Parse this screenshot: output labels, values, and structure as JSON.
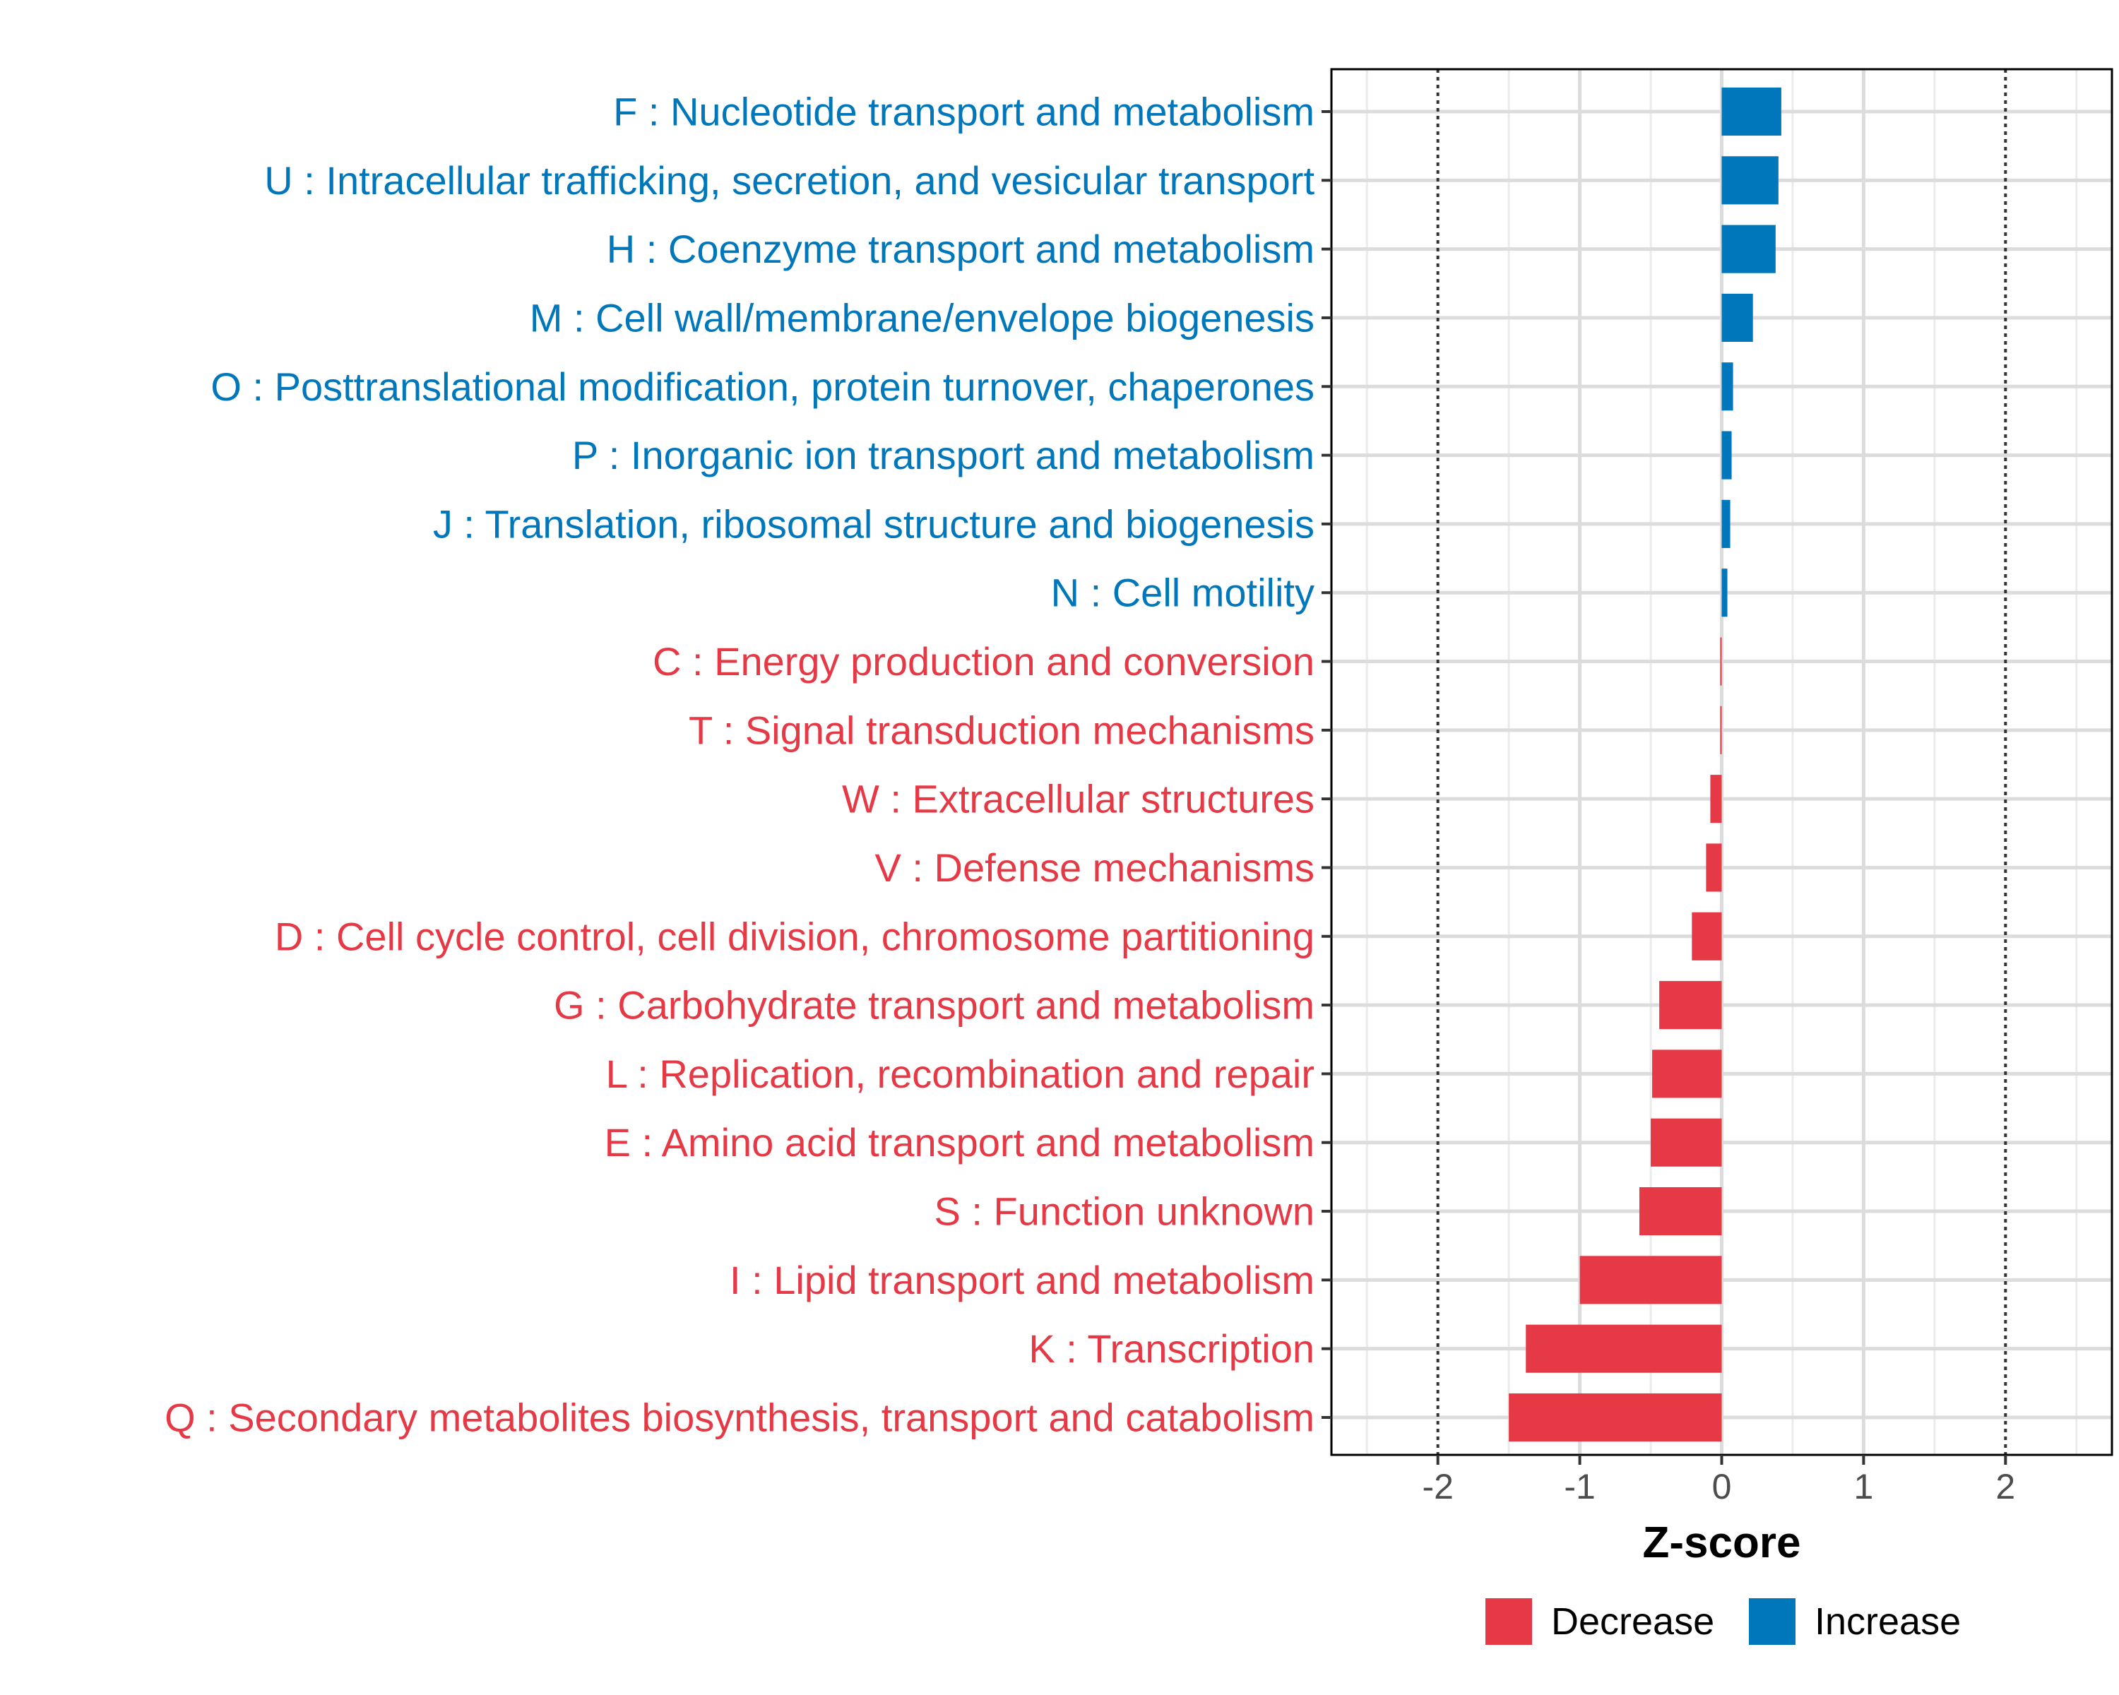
{
  "chart_data": {
    "type": "bar",
    "orientation": "horizontal",
    "xlabel": "Z-score",
    "xlim": [
      -2.75,
      2.75
    ],
    "xticks": [
      -2,
      -1,
      0,
      1,
      2
    ],
    "xtick_labels": [
      "-2",
      "-1",
      "0",
      "1",
      "2"
    ],
    "reference_lines": [
      -2,
      2
    ],
    "grid": true,
    "legend_position": "bottom",
    "legend": [
      {
        "key": "decrease",
        "label": "Decrease",
        "color": "#E63946"
      },
      {
        "key": "increase",
        "label": "Increase",
        "color": "#0077BB"
      }
    ],
    "categories": [
      "F : Nucleotide transport and metabolism",
      "U : Intracellular trafficking, secretion, and vesicular transport",
      "H : Coenzyme transport and metabolism",
      "M : Cell wall/membrane/envelope biogenesis",
      "O : Posttranslational modification, protein turnover, chaperones",
      "P : Inorganic ion transport and metabolism",
      "J : Translation, ribosomal structure and biogenesis",
      "N : Cell motility",
      "C : Energy production and conversion",
      "T : Signal transduction mechanisms",
      "W : Extracellular structures",
      "V : Defense mechanisms",
      "D : Cell cycle control, cell division, chromosome partitioning",
      "G : Carbohydrate transport and metabolism",
      "L : Replication, recombination and repair",
      "E : Amino acid transport and metabolism",
      "S : Function unknown",
      "I : Lipid transport and metabolism",
      "K : Transcription",
      "Q : Secondary metabolites biosynthesis, transport and catabolism"
    ],
    "values": [
      0.42,
      0.4,
      0.38,
      0.22,
      0.08,
      0.07,
      0.06,
      0.04,
      -0.01,
      -0.01,
      -0.08,
      -0.11,
      -0.21,
      -0.44,
      -0.49,
      -0.5,
      -0.58,
      -1.0,
      -1.38,
      -1.5
    ],
    "groups": [
      "increase",
      "increase",
      "increase",
      "increase",
      "increase",
      "increase",
      "increase",
      "increase",
      "decrease",
      "decrease",
      "decrease",
      "decrease",
      "decrease",
      "decrease",
      "decrease",
      "decrease",
      "decrease",
      "decrease",
      "decrease",
      "decrease"
    ]
  }
}
